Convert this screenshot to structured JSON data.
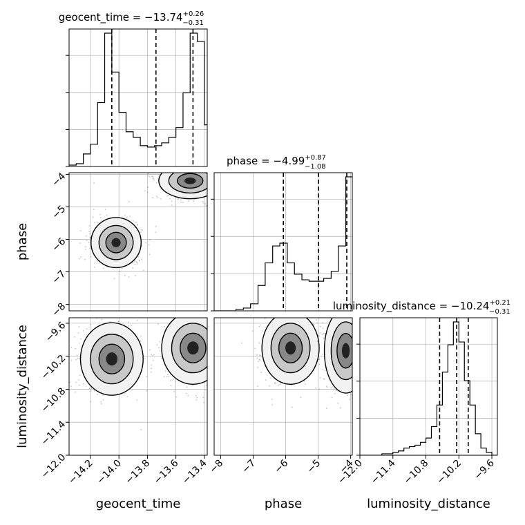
{
  "chart_data": {
    "type": "corner",
    "parameters": [
      "geocent_time",
      "phase",
      "luminosity_distance"
    ],
    "axis_labels": {
      "geocent_time": "geocent_time",
      "phase": "phase",
      "luminosity_distance": "luminosity_distance"
    },
    "ranges": {
      "geocent_time": [
        -14.35,
        -13.38
      ],
      "phase": [
        -8.2,
        -3.95
      ],
      "luminosity_distance": [
        -12.0,
        -9.5
      ]
    },
    "ticks": {
      "geocent_time": [
        "−14.2",
        "−14.0",
        "−13.8",
        "−13.6",
        "−13.4"
      ],
      "geocent_time_values": [
        -14.2,
        -14.0,
        -13.8,
        -13.6,
        -13.4
      ],
      "phase": [
        "−8",
        "−7",
        "−6",
        "−5",
        "−4"
      ],
      "phase_values": [
        -8,
        -7,
        -6,
        -5,
        -4
      ],
      "luminosity_distance": [
        "−12.0",
        "−11.4",
        "−10.8",
        "−10.2",
        "−9.6"
      ],
      "luminosity_distance_values": [
        -12.0,
        -11.4,
        -10.8,
        -10.2,
        -9.6
      ]
    },
    "titles": {
      "geocent_time": {
        "text": "geocent_time = −13.74",
        "sup": "+0.26",
        "sub": "−0.31"
      },
      "phase": {
        "text": "phase = −4.99",
        "sup": "+0.87",
        "sub": "−1.08"
      },
      "luminosity_distance": {
        "text": "luminosity_distance = −10.24",
        "sup": "+0.21",
        "sub": "−0.31"
      }
    },
    "quantiles": {
      "geocent_time": [
        -14.05,
        -13.74,
        -13.48
      ],
      "phase": [
        -6.07,
        -4.99,
        -4.12
      ],
      "luminosity_distance": [
        -10.55,
        -10.24,
        -10.03
      ]
    },
    "histograms": {
      "geocent_time": {
        "bins": [
          -14.35,
          -14.3,
          -14.25,
          -14.2,
          -14.15,
          -14.1,
          -14.05,
          -14.0,
          -13.95,
          -13.9,
          -13.85,
          -13.8,
          -13.75,
          -13.7,
          -13.65,
          -13.6,
          -13.55,
          -13.5,
          -13.45,
          -13.4,
          -13.38
        ],
        "counts": [
          0.01,
          0.02,
          0.09,
          0.16,
          0.46,
          0.96,
          0.68,
          0.39,
          0.25,
          0.21,
          0.15,
          0.14,
          0.15,
          0.17,
          0.21,
          0.28,
          0.53,
          0.96,
          0.9,
          0.3
        ]
      },
      "phase": {
        "bins": [
          -8.2,
          -7.98,
          -7.75,
          -7.53,
          -7.3,
          -7.08,
          -6.85,
          -6.63,
          -6.4,
          -6.18,
          -5.95,
          -5.73,
          -5.5,
          -5.28,
          -5.05,
          -4.83,
          -4.6,
          -4.38,
          -4.15,
          -3.95
        ],
        "counts": [
          0.0,
          0.0,
          0.0,
          0.01,
          0.02,
          0.05,
          0.18,
          0.34,
          0.46,
          0.48,
          0.34,
          0.26,
          0.22,
          0.21,
          0.21,
          0.23,
          0.28,
          0.46,
          0.95
        ]
      },
      "luminosity_distance": {
        "bins": [
          -12.0,
          -11.9,
          -11.8,
          -11.7,
          -11.6,
          -11.5,
          -11.4,
          -11.3,
          -11.2,
          -11.1,
          -11.0,
          -10.9,
          -10.8,
          -10.7,
          -10.6,
          -10.5,
          -10.4,
          -10.3,
          -10.2,
          -10.1,
          -10.0,
          -9.9,
          -9.8,
          -9.7,
          -9.6,
          -9.5
        ],
        "counts": [
          0.0,
          0.0,
          0.0,
          0.0,
          0.01,
          0.01,
          0.02,
          0.03,
          0.05,
          0.06,
          0.07,
          0.09,
          0.12,
          0.2,
          0.35,
          0.58,
          0.77,
          0.93,
          0.79,
          0.52,
          0.35,
          0.15,
          0.05,
          0.02,
          0.0
        ]
      }
    },
    "density_regions": [
      {
        "x": "geocent_time",
        "y": "phase",
        "center": [
          -14.02,
          -6.1
        ],
        "spread": [
          0.08,
          0.35
        ]
      },
      {
        "x": "geocent_time",
        "y": "phase",
        "center": [
          -13.5,
          -4.2
        ],
        "spread": [
          0.1,
          0.25
        ]
      },
      {
        "x": "geocent_time",
        "y": "luminosity_distance",
        "center": [
          -14.05,
          -10.25
        ],
        "spread": [
          0.1,
          0.3
        ]
      },
      {
        "x": "geocent_time",
        "y": "luminosity_distance",
        "center": [
          -13.48,
          -10.05
        ],
        "spread": [
          0.1,
          0.3
        ]
      },
      {
        "x": "phase",
        "y": "luminosity_distance",
        "center": [
          -5.85,
          -10.05
        ],
        "spread": [
          0.4,
          0.3
        ]
      },
      {
        "x": "phase",
        "y": "luminosity_distance",
        "center": [
          -4.15,
          -10.1
        ],
        "spread": [
          0.3,
          0.35
        ]
      }
    ],
    "grid": true
  },
  "colors": {
    "line": "#000000",
    "grid": "#b0b0b0",
    "scatter": "#555555"
  }
}
